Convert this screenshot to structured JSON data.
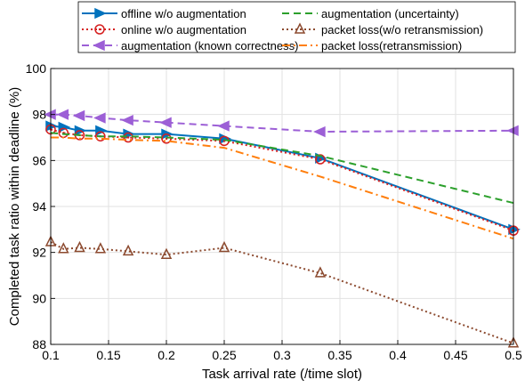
{
  "chart_data": {
    "type": "line",
    "title": "",
    "xlabel": "Task arrival rate (/time slot)",
    "ylabel": "Completed task ratio within deadline (%)",
    "xlim": [
      0.1,
      0.5
    ],
    "ylim": [
      88,
      100
    ],
    "xticks": [
      0.1,
      0.15,
      0.2,
      0.25,
      0.3,
      0.35,
      0.4,
      0.45,
      0.5
    ],
    "xtick_labels": [
      "0.1",
      "0.15",
      "0.2",
      "0.25",
      "0.3",
      "0.35",
      "0.4",
      "0.45",
      "0.5"
    ],
    "yticks": [
      88,
      90,
      92,
      94,
      96,
      98,
      100
    ],
    "ytick_labels": [
      "88",
      "90",
      "92",
      "94",
      "96",
      "98",
      "100"
    ],
    "grid": true,
    "legend_position": "top (outside plot, two columns)",
    "series": [
      {
        "name": "offline w/o augmentation",
        "color": "#0072BD",
        "line_style": "solid",
        "marker": "triangle-right",
        "x": [
          0.1,
          0.111,
          0.125,
          0.143,
          0.167,
          0.2,
          0.25,
          0.333,
          0.5
        ],
        "y": [
          97.5,
          97.45,
          97.3,
          97.3,
          97.15,
          97.15,
          96.95,
          96.1,
          93.0
        ]
      },
      {
        "name": "online w/o augmentation",
        "color": "#D62020",
        "line_style": "dotted",
        "marker": "circle",
        "x": [
          0.1,
          0.111,
          0.125,
          0.143,
          0.167,
          0.2,
          0.25,
          0.333,
          0.5
        ],
        "y": [
          97.35,
          97.2,
          97.1,
          97.05,
          97.0,
          96.95,
          96.85,
          96.05,
          92.95
        ]
      },
      {
        "name": "augmentation (known correctness)",
        "color": "#9C5FD6",
        "line_style": "dashed",
        "marker": "triangle-left",
        "x": [
          0.1,
          0.111,
          0.125,
          0.143,
          0.167,
          0.2,
          0.25,
          0.333,
          0.5
        ],
        "y": [
          98.0,
          98.0,
          97.95,
          97.85,
          97.75,
          97.65,
          97.5,
          97.25,
          97.3
        ]
      },
      {
        "name": "augmentation (uncertainty)",
        "color": "#2CA02C",
        "line_style": "dashed",
        "marker": "none",
        "x": [
          0.1,
          0.111,
          0.125,
          0.143,
          0.167,
          0.2,
          0.25,
          0.333,
          0.5
        ],
        "y": [
          97.2,
          97.15,
          97.1,
          97.05,
          97.05,
          97.0,
          96.9,
          96.2,
          94.15
        ]
      },
      {
        "name": "packet loss(w/o retransmission)",
        "color": "#8C4A2F",
        "line_style": "dotted",
        "marker": "triangle-up",
        "x": [
          0.1,
          0.111,
          0.125,
          0.143,
          0.167,
          0.2,
          0.25,
          0.333,
          0.5
        ],
        "y": [
          92.45,
          92.15,
          92.2,
          92.15,
          92.05,
          91.9,
          92.2,
          91.1,
          88.05
        ]
      },
      {
        "name": "packet loss(retransmission)",
        "color": "#FF7F0E",
        "line_style": "dash-dot",
        "marker": "none",
        "x": [
          0.1,
          0.111,
          0.125,
          0.143,
          0.167,
          0.2,
          0.25,
          0.333,
          0.5
        ],
        "y": [
          97.0,
          97.0,
          96.95,
          96.95,
          96.9,
          96.85,
          96.55,
          95.3,
          92.6
        ]
      }
    ]
  }
}
